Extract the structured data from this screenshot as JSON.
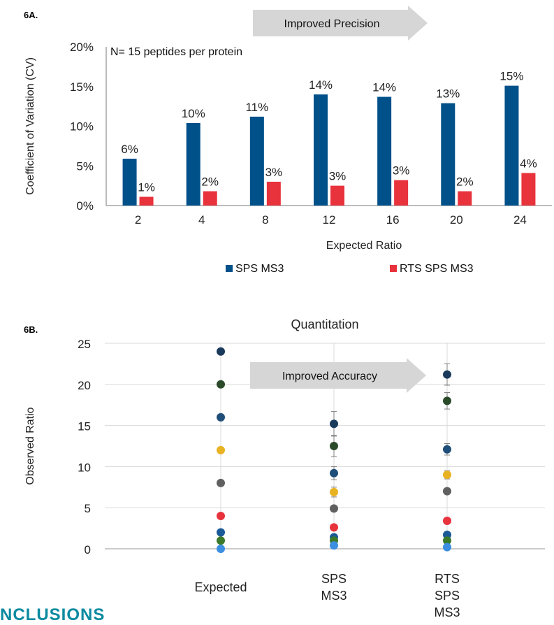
{
  "panelA_label": "6A",
  "panelB_label": "6B",
  "section_heading_partial": "NCLUSIONS",
  "colors": {
    "sps": "#00508a",
    "rts": "#e8323c",
    "grid": "#d9d9d9",
    "arrow": "#d6d6d6"
  },
  "chart_data": [
    {
      "type": "bar",
      "title": "",
      "annotation": "N= 15 peptides per protein",
      "arrow_label": "Improved Precision",
      "xlabel": "Expected Ratio",
      "ylabel": "Coefficient of Variation (CV)",
      "ylim": [
        0,
        20
      ],
      "yticks": [
        "0%",
        "5%",
        "10%",
        "15%",
        "20%"
      ],
      "categories": [
        "2",
        "4",
        "8",
        "12",
        "16",
        "20",
        "24"
      ],
      "legend_position": "bottom",
      "grid": false,
      "series": [
        {
          "name": "SPS MS3",
          "color": "#00508a",
          "values": [
            5.9,
            10.4,
            11.2,
            14.0,
            13.7,
            12.9,
            15.1
          ],
          "labels": [
            "6%",
            "10%",
            "11%",
            "14%",
            "14%",
            "13%",
            "15%"
          ]
        },
        {
          "name": "RTS SPS MS3",
          "color": "#e8323c",
          "values": [
            1.1,
            1.8,
            3.0,
            2.5,
            3.2,
            1.8,
            4.1
          ],
          "labels": [
            "1%",
            "2%",
            "3%",
            "3%",
            "3%",
            "2%",
            "4%"
          ]
        }
      ]
    },
    {
      "type": "scatter",
      "title": "Quantitation",
      "arrow_label": "Improved Accuracy",
      "xlabel": "",
      "ylabel": "Observed Ratio",
      "ylim": [
        0,
        25
      ],
      "yticks": [
        "0",
        "5",
        "10",
        "15",
        "20",
        "25"
      ],
      "categories": [
        "Expected",
        "SPS MS3",
        "RTS SPS MS3"
      ],
      "category_label_lines": [
        [
          "Expected"
        ],
        [
          "SPS",
          "MS3"
        ],
        [
          "RTS",
          "SPS",
          "MS3"
        ]
      ],
      "grid": true,
      "series": [
        {
          "color": "#1a3a5c",
          "values": [
            24,
            15.2,
            21.2
          ],
          "err": [
            0,
            1.5,
            1.3
          ]
        },
        {
          "color": "#2a4a2a",
          "values": [
            20,
            12.5,
            18.0
          ],
          "err": [
            0,
            1.3,
            1.0
          ]
        },
        {
          "color": "#1f4e79",
          "values": [
            16,
            9.2,
            12.1
          ],
          "err": [
            0,
            0.8,
            0.7
          ]
        },
        {
          "color": "#e8b222",
          "values": [
            12,
            6.9,
            9.0
          ],
          "err": [
            0,
            0.6,
            0.5
          ]
        },
        {
          "color": "#606060",
          "values": [
            8,
            4.9,
            7.0
          ],
          "err": [
            0,
            0,
            0
          ]
        },
        {
          "color": "#e8323c",
          "values": [
            4,
            2.6,
            3.4
          ],
          "err": [
            0,
            0,
            0
          ]
        },
        {
          "color": "#1a5a96",
          "values": [
            2,
            1.4,
            1.7
          ],
          "err": [
            0,
            0,
            0
          ]
        },
        {
          "color": "#3a7a2a",
          "values": [
            1,
            1.0,
            1.0
          ],
          "err": [
            0,
            0,
            0
          ]
        },
        {
          "color": "#3b8ee0",
          "values": [
            0,
            0.4,
            0.2
          ],
          "err": [
            0,
            0,
            0
          ]
        }
      ]
    }
  ]
}
